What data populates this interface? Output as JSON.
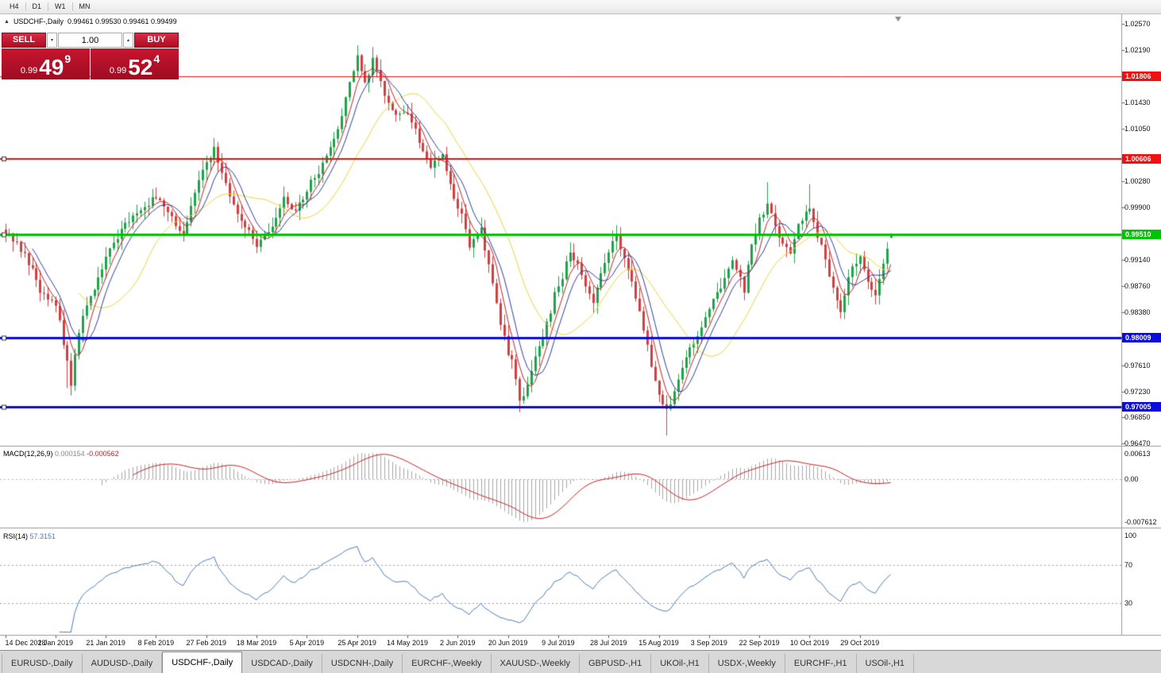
{
  "icons": {
    "collapse": "▲",
    "volume_dropdown": "▾",
    "volume_stepper": "▴"
  },
  "colors": {
    "up_candle": "#1fa24a",
    "down_candle": "#d04040",
    "ma_fast": "#c22222",
    "ma_mid": "#2a3f9f",
    "ma_slow": "#ecd43c",
    "macd_hist": "#a6a6a6",
    "macd_signal": "#cc2222",
    "rsi_line": "#4a7ebb",
    "sell_red": "#c6152f"
  },
  "toolbar": {
    "timeframes": [
      "H4",
      "D1",
      "W1",
      "MN"
    ]
  },
  "chart_header": {
    "symbol_title": "USDCHF-,Daily",
    "ohlc": "0.99461 0.99530 0.99461 0.99499"
  },
  "trade_panel": {
    "sell_label": "SELL",
    "buy_label": "BUY",
    "volume": "1.00",
    "sell_price": {
      "base": "0.99",
      "big": "49",
      "pip": "9"
    },
    "buy_price": {
      "base": "0.99",
      "big": "52",
      "pip": "4"
    }
  },
  "macd_panel": {
    "name": "MACD(12,26,9)",
    "value_main": "0.000154",
    "value_signal": "-0.000562",
    "tick_top": "0.00613",
    "tick_zero": "0.00",
    "tick_bottom": "-0.007612"
  },
  "rsi_panel": {
    "name": "RSI(14)",
    "value": "57.3151",
    "ticks": [
      "100",
      "70",
      "30"
    ],
    "tick_values": [
      100,
      70,
      30
    ],
    "levels": [
      70,
      30
    ]
  },
  "tabs": {
    "active_index": 2,
    "items": [
      "EURUSD-,Daily",
      "AUDUSD-,Daily",
      "USDCHF-,Daily",
      "USDCAD-,Daily",
      "USDCNH-,Daily",
      "EURCHF-,Weekly",
      "XAUUSD-,Weekly",
      "GBPUSD-,H1",
      "UKOil-,H1",
      "USDX-,Weekly",
      "EURCHF-,H1",
      "USOil-,H1"
    ]
  },
  "chart_data": {
    "type": "candlestick",
    "symbol": "USDCHF",
    "timeframe": "Daily",
    "ohlc_current": {
      "open": 0.99461,
      "high": 0.9953,
      "low": 0.99461,
      "close": 0.99499
    },
    "y_axis_range": [
      0.9644,
      1.0271
    ],
    "y_ticks": [
      "1.02570",
      "1.02190",
      "1.01430",
      "1.01050",
      "1.00280",
      "0.99900",
      "0.99140",
      "0.98760",
      "0.98380",
      "0.97610",
      "0.97230",
      "0.96850",
      "0.96470"
    ],
    "horizontal_lines": [
      {
        "label": "1.01806",
        "value": 1.01806,
        "color": "#ee1111",
        "width": 1,
        "handle": false
      },
      {
        "label": "1.00606",
        "value": 1.00606,
        "color": "#ee1111",
        "width": 2,
        "handle": true
      },
      {
        "label": "0.99510",
        "value": 0.9951,
        "color": "#00c400",
        "width": 3,
        "handle": true
      },
      {
        "label": "0.98009",
        "value": 0.98009,
        "color": "#0b0bdd",
        "width": 3,
        "handle": true
      },
      {
        "label": "0.97005",
        "value": 0.97005,
        "color": "#0b0bdd",
        "width": 3,
        "handle": true
      }
    ],
    "x_axis_dates": [
      "14 Dec 2018",
      "2 Jan 2019",
      "21 Jan 2019",
      "8 Feb 2019",
      "27 Feb 2019",
      "18 Mar 2019",
      "5 Apr 2019",
      "25 Apr 2019",
      "14 May 2019",
      "2 Jun 2019",
      "20 Jun 2019",
      "9 Jul 2019",
      "28 Jul 2019",
      "15 Aug 2019",
      "3 Sep 2019",
      "22 Sep 2019",
      "10 Oct 2019",
      "29 Oct 2019"
    ],
    "candles_per_label": 13,
    "n_candles": 230,
    "close_keypoints": [
      [
        0,
        0.9958
      ],
      [
        5,
        0.9922
      ],
      [
        9,
        0.9872
      ],
      [
        13,
        0.9852
      ],
      [
        16,
        0.9762
      ],
      [
        17,
        0.9735
      ],
      [
        19,
        0.9812
      ],
      [
        23,
        0.9876
      ],
      [
        26,
        0.9921
      ],
      [
        30,
        0.9956
      ],
      [
        34,
        0.9984
      ],
      [
        39,
        1.0006
      ],
      [
        43,
        0.9976
      ],
      [
        46,
        0.9952
      ],
      [
        49,
        1.0012
      ],
      [
        52,
        1.0058
      ],
      [
        54,
        1.0078
      ],
      [
        57,
        1.0022
      ],
      [
        60,
        0.9982
      ],
      [
        65,
        0.9936
      ],
      [
        69,
        0.9964
      ],
      [
        72,
        1.0008
      ],
      [
        75,
        0.9986
      ],
      [
        78,
        1.0018
      ],
      [
        82,
        1.0052
      ],
      [
        86,
        1.0104
      ],
      [
        89,
        1.0168
      ],
      [
        91,
        1.0212
      ],
      [
        93,
        1.0168
      ],
      [
        95,
        1.0205
      ],
      [
        98,
        1.0158
      ],
      [
        101,
        1.0122
      ],
      [
        104,
        1.0132
      ],
      [
        107,
        1.0088
      ],
      [
        110,
        1.0052
      ],
      [
        113,
        1.0062
      ],
      [
        116,
        1.0002
      ],
      [
        118,
        0.9985
      ],
      [
        120,
        0.9932
      ],
      [
        123,
        0.9958
      ],
      [
        126,
        0.9878
      ],
      [
        129,
        0.9798
      ],
      [
        131,
        0.9765
      ],
      [
        133,
        0.9706
      ],
      [
        136,
        0.9752
      ],
      [
        139,
        0.9802
      ],
      [
        142,
        0.9862
      ],
      [
        144,
        0.9885
      ],
      [
        146,
        0.9928
      ],
      [
        149,
        0.9892
      ],
      [
        152,
        0.9856
      ],
      [
        155,
        0.9912
      ],
      [
        158,
        0.9948
      ],
      [
        161,
        0.9902
      ],
      [
        164,
        0.9842
      ],
      [
        167,
        0.9762
      ],
      [
        169,
        0.9722
      ],
      [
        171,
        0.9692
      ],
      [
        174,
        0.9742
      ],
      [
        177,
        0.9782
      ],
      [
        180,
        0.9812
      ],
      [
        182,
        0.9842
      ],
      [
        185,
        0.9872
      ],
      [
        188,
        0.9912
      ],
      [
        191,
        0.9872
      ],
      [
        193,
        0.9932
      ],
      [
        195,
        0.9972
      ],
      [
        197,
        0.9998
      ],
      [
        200,
        0.9952
      ],
      [
        203,
        0.9922
      ],
      [
        205,
        0.9968
      ],
      [
        208,
        0.9988
      ],
      [
        211,
        0.9932
      ],
      [
        214,
        0.9872
      ],
      [
        216,
        0.9842
      ],
      [
        218,
        0.9892
      ],
      [
        221,
        0.9918
      ],
      [
        223,
        0.9888
      ],
      [
        225,
        0.9862
      ],
      [
        227,
        0.9912
      ],
      [
        229,
        0.99499
      ]
    ],
    "wick_overrides": [
      {
        "i": 16,
        "low": 0.9728
      },
      {
        "i": 17,
        "low": 0.9717
      },
      {
        "i": 91,
        "high": 1.0226
      },
      {
        "i": 133,
        "low": 0.9693
      },
      {
        "i": 171,
        "low": 0.9659
      },
      {
        "i": 197,
        "high": 1.0027
      },
      {
        "i": 208,
        "high": 1.0024
      }
    ],
    "moving_averages": [
      {
        "period": 5,
        "color_key": "ma_fast"
      },
      {
        "period": 8,
        "color_key": "ma_mid"
      },
      {
        "period": 20,
        "color_key": "ma_slow"
      }
    ],
    "indicators": {
      "macd": {
        "params": [
          12,
          26,
          9
        ],
        "current_main": 0.000154,
        "current_signal": -0.000562,
        "axis": [
          0.00613,
          0,
          -0.007612
        ]
      },
      "rsi": {
        "period": 14,
        "current": 57.3151,
        "levels": [
          70,
          30
        ],
        "axis": [
          100,
          70,
          30
        ]
      }
    }
  }
}
